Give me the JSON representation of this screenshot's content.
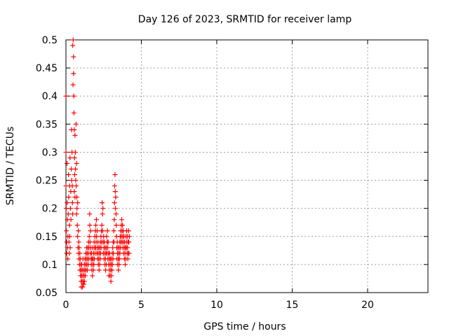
{
  "chart_data": {
    "type": "scatter",
    "title": "Day 126 of 2023, SRMTID for receiver lamp",
    "xlabel": "GPS time / hours",
    "ylabel": "SRMTID / TECUs",
    "xlim": [
      0,
      24
    ],
    "ylim": [
      0.05,
      0.5
    ],
    "xticks": [
      0,
      5,
      10,
      15,
      20
    ],
    "yticks": [
      0.05,
      0.1,
      0.15,
      0.2,
      0.25,
      0.3,
      0.35,
      0.4,
      0.45,
      0.5
    ],
    "xtick_labels": [
      "0",
      "5",
      "10",
      "15",
      "20"
    ],
    "ytick_labels": [
      "0.05",
      "0.1",
      "0.15",
      "0.2",
      "0.25",
      "0.3",
      "0.35",
      "0.4",
      "0.45",
      "0.5"
    ],
    "grid": true,
    "marker": "+",
    "color": "#ff0000",
    "series": [
      {
        "name": "SRMTID",
        "points": [
          [
            0.0,
            0.4
          ],
          [
            0.0,
            0.3
          ],
          [
            0.0,
            0.24
          ],
          [
            0.02,
            0.2
          ],
          [
            0.03,
            0.16
          ],
          [
            0.05,
            0.14
          ],
          [
            0.05,
            0.12
          ],
          [
            0.07,
            0.28
          ],
          [
            0.08,
            0.21
          ],
          [
            0.1,
            0.18
          ],
          [
            0.1,
            0.13
          ],
          [
            0.12,
            0.11
          ],
          [
            0.13,
            0.15
          ],
          [
            0.15,
            0.19
          ],
          [
            0.17,
            0.26
          ],
          [
            0.18,
            0.22
          ],
          [
            0.2,
            0.14
          ],
          [
            0.22,
            0.12
          ],
          [
            0.23,
            0.17
          ],
          [
            0.25,
            0.24
          ],
          [
            0.25,
            0.15
          ],
          [
            0.27,
            0.29
          ],
          [
            0.28,
            0.13
          ],
          [
            0.3,
            0.2
          ],
          [
            0.32,
            0.23
          ],
          [
            0.33,
            0.18
          ],
          [
            0.35,
            0.27
          ],
          [
            0.37,
            0.34
          ],
          [
            0.38,
            0.25
          ],
          [
            0.4,
            0.3
          ],
          [
            0.42,
            0.24
          ],
          [
            0.43,
            0.21
          ],
          [
            0.45,
            0.19
          ],
          [
            0.45,
            0.49
          ],
          [
            0.47,
            0.42
          ],
          [
            0.48,
            0.5
          ],
          [
            0.5,
            0.47
          ],
          [
            0.5,
            0.44
          ],
          [
            0.52,
            0.4
          ],
          [
            0.53,
            0.37
          ],
          [
            0.55,
            0.34
          ],
          [
            0.55,
            0.23
          ],
          [
            0.57,
            0.29
          ],
          [
            0.58,
            0.26
          ],
          [
            0.6,
            0.33
          ],
          [
            0.6,
            0.22
          ],
          [
            0.62,
            0.3
          ],
          [
            0.63,
            0.27
          ],
          [
            0.65,
            0.25
          ],
          [
            0.67,
            0.35
          ],
          [
            0.68,
            0.24
          ],
          [
            0.7,
            0.28
          ],
          [
            0.7,
            0.19
          ],
          [
            0.72,
            0.22
          ],
          [
            0.73,
            0.2
          ],
          [
            0.75,
            0.17
          ],
          [
            0.77,
            0.15
          ],
          [
            0.78,
            0.21
          ],
          [
            0.8,
            0.13
          ],
          [
            0.82,
            0.16
          ],
          [
            0.83,
            0.12
          ],
          [
            0.85,
            0.14
          ],
          [
            0.87,
            0.11
          ],
          [
            0.88,
            0.13
          ],
          [
            0.9,
            0.1
          ],
          [
            0.92,
            0.12
          ],
          [
            0.93,
            0.09
          ],
          [
            0.95,
            0.11
          ],
          [
            0.97,
            0.08
          ],
          [
            0.98,
            0.1
          ],
          [
            1.0,
            0.07
          ],
          [
            1.0,
            0.09
          ],
          [
            1.02,
            0.06
          ],
          [
            1.03,
            0.08
          ],
          [
            1.05,
            0.1
          ],
          [
            1.07,
            0.07
          ],
          [
            1.08,
            0.09
          ],
          [
            1.1,
            0.06
          ],
          [
            1.12,
            0.08
          ],
          [
            1.13,
            0.11
          ],
          [
            1.15,
            0.07
          ],
          [
            1.17,
            0.09
          ],
          [
            1.18,
            0.065
          ],
          [
            1.2,
            0.08
          ],
          [
            1.22,
            0.1
          ],
          [
            1.23,
            0.07
          ],
          [
            1.25,
            0.09
          ],
          [
            1.27,
            0.11
          ],
          [
            1.28,
            0.08
          ],
          [
            1.3,
            0.1
          ],
          [
            1.32,
            0.12
          ],
          [
            1.33,
            0.09
          ],
          [
            1.35,
            0.11
          ],
          [
            1.37,
            0.13
          ],
          [
            1.38,
            0.1
          ],
          [
            1.4,
            0.12
          ],
          [
            1.42,
            0.09
          ],
          [
            1.43,
            0.11
          ],
          [
            1.45,
            0.13
          ],
          [
            1.47,
            0.1
          ],
          [
            1.48,
            0.12
          ],
          [
            1.5,
            0.14
          ],
          [
            1.52,
            0.11
          ],
          [
            1.53,
            0.13
          ],
          [
            1.55,
            0.15
          ],
          [
            1.57,
            0.19
          ],
          [
            1.58,
            0.17
          ],
          [
            1.6,
            0.14
          ],
          [
            1.62,
            0.12
          ],
          [
            1.63,
            0.16
          ],
          [
            1.65,
            0.13
          ],
          [
            1.67,
            0.11
          ],
          [
            1.68,
            0.1
          ],
          [
            1.7,
            0.12
          ],
          [
            1.72,
            0.09
          ],
          [
            1.73,
            0.11
          ],
          [
            1.75,
            0.08
          ],
          [
            1.77,
            0.1
          ],
          [
            1.78,
            0.13
          ],
          [
            1.8,
            0.11
          ],
          [
            1.82,
            0.09
          ],
          [
            1.83,
            0.12
          ],
          [
            1.85,
            0.1
          ],
          [
            1.87,
            0.14
          ],
          [
            1.88,
            0.11
          ],
          [
            1.9,
            0.13
          ],
          [
            1.92,
            0.15
          ],
          [
            1.93,
            0.12
          ],
          [
            1.95,
            0.16
          ],
          [
            1.97,
            0.13
          ],
          [
            1.98,
            0.17
          ],
          [
            2.0,
            0.14
          ],
          [
            2.02,
            0.18
          ],
          [
            2.03,
            0.15
          ],
          [
            2.05,
            0.12
          ],
          [
            2.07,
            0.16
          ],
          [
            2.08,
            0.13
          ],
          [
            2.1,
            0.11
          ],
          [
            2.12,
            0.14
          ],
          [
            2.13,
            0.12
          ],
          [
            2.15,
            0.1
          ],
          [
            2.17,
            0.13
          ],
          [
            2.18,
            0.11
          ],
          [
            2.2,
            0.09
          ],
          [
            2.22,
            0.12
          ],
          [
            2.23,
            0.1
          ],
          [
            2.25,
            0.13
          ],
          [
            2.27,
            0.11
          ],
          [
            2.28,
            0.14
          ],
          [
            2.3,
            0.12
          ],
          [
            2.32,
            0.15
          ],
          [
            2.33,
            0.13
          ],
          [
            2.35,
            0.16
          ],
          [
            2.37,
            0.14
          ],
          [
            2.38,
            0.17
          ],
          [
            2.4,
            0.21
          ],
          [
            2.42,
            0.19
          ],
          [
            2.43,
            0.16
          ],
          [
            2.45,
            0.2
          ],
          [
            2.47,
            0.14
          ],
          [
            2.48,
            0.12
          ],
          [
            2.5,
            0.15
          ],
          [
            2.52,
            0.13
          ],
          [
            2.53,
            0.11
          ],
          [
            2.55,
            0.14
          ],
          [
            2.57,
            0.12
          ],
          [
            2.58,
            0.1
          ],
          [
            2.6,
            0.13
          ],
          [
            2.62,
            0.11
          ],
          [
            2.63,
            0.09
          ],
          [
            2.65,
            0.12
          ],
          [
            2.67,
            0.1
          ],
          [
            2.68,
            0.13
          ],
          [
            2.7,
            0.15
          ],
          [
            2.72,
            0.12
          ],
          [
            2.73,
            0.14
          ],
          [
            2.75,
            0.16
          ],
          [
            2.77,
            0.13
          ],
          [
            2.78,
            0.11
          ],
          [
            2.8,
            0.14
          ],
          [
            2.82,
            0.12
          ],
          [
            2.83,
            0.1
          ],
          [
            2.85,
            0.08
          ],
          [
            2.87,
            0.11
          ],
          [
            2.88,
            0.09
          ],
          [
            2.9,
            0.12
          ],
          [
            2.92,
            0.1
          ],
          [
            2.93,
            0.08
          ],
          [
            2.95,
            0.11
          ],
          [
            2.97,
            0.09
          ],
          [
            2.98,
            0.07
          ],
          [
            3.0,
            0.1
          ],
          [
            3.02,
            0.08
          ],
          [
            3.03,
            0.11
          ],
          [
            3.05,
            0.09
          ],
          [
            3.07,
            0.12
          ],
          [
            3.08,
            0.1
          ],
          [
            3.1,
            0.13
          ],
          [
            3.12,
            0.11
          ],
          [
            3.13,
            0.14
          ],
          [
            3.15,
            0.12
          ],
          [
            3.17,
            0.16
          ],
          [
            3.18,
            0.14
          ],
          [
            3.2,
            0.18
          ],
          [
            3.22,
            0.21
          ],
          [
            3.23,
            0.24
          ],
          [
            3.25,
            0.26
          ],
          [
            3.27,
            0.23
          ],
          [
            3.28,
            0.2
          ],
          [
            3.3,
            0.22
          ],
          [
            3.32,
            0.19
          ],
          [
            3.33,
            0.17
          ],
          [
            3.35,
            0.15
          ],
          [
            3.37,
            0.13
          ],
          [
            3.38,
            0.11
          ],
          [
            3.4,
            0.14
          ],
          [
            3.42,
            0.12
          ],
          [
            3.43,
            0.1
          ],
          [
            3.45,
            0.13
          ],
          [
            3.47,
            0.11
          ],
          [
            3.48,
            0.09
          ],
          [
            3.5,
            0.12
          ],
          [
            3.52,
            0.1
          ],
          [
            3.53,
            0.13
          ],
          [
            3.55,
            0.11
          ],
          [
            3.57,
            0.14
          ],
          [
            3.58,
            0.12
          ],
          [
            3.6,
            0.15
          ],
          [
            3.62,
            0.13
          ],
          [
            3.63,
            0.16
          ],
          [
            3.65,
            0.14
          ],
          [
            3.67,
            0.17
          ],
          [
            3.68,
            0.15
          ],
          [
            3.7,
            0.18
          ],
          [
            3.72,
            0.16
          ],
          [
            3.73,
            0.14
          ],
          [
            3.75,
            0.17
          ],
          [
            3.77,
            0.15
          ],
          [
            3.78,
            0.13
          ],
          [
            3.8,
            0.16
          ],
          [
            3.82,
            0.14
          ],
          [
            3.83,
            0.12
          ],
          [
            3.85,
            0.15
          ],
          [
            3.87,
            0.13
          ],
          [
            3.88,
            0.11
          ],
          [
            3.9,
            0.14
          ],
          [
            3.92,
            0.12
          ],
          [
            3.93,
            0.1
          ],
          [
            3.95,
            0.13
          ],
          [
            3.97,
            0.11
          ],
          [
            3.98,
            0.15
          ],
          [
            4.0,
            0.13
          ],
          [
            4.02,
            0.16
          ],
          [
            4.03,
            0.14
          ],
          [
            4.05,
            0.12
          ],
          [
            4.07,
            0.15
          ],
          [
            4.08,
            0.13
          ],
          [
            4.1,
            0.11
          ],
          [
            4.12,
            0.14
          ],
          [
            4.13,
            0.12
          ],
          [
            4.15,
            0.16
          ],
          [
            4.17,
            0.14
          ],
          [
            4.18,
            0.12
          ],
          [
            4.2,
            0.15
          ]
        ]
      }
    ]
  }
}
